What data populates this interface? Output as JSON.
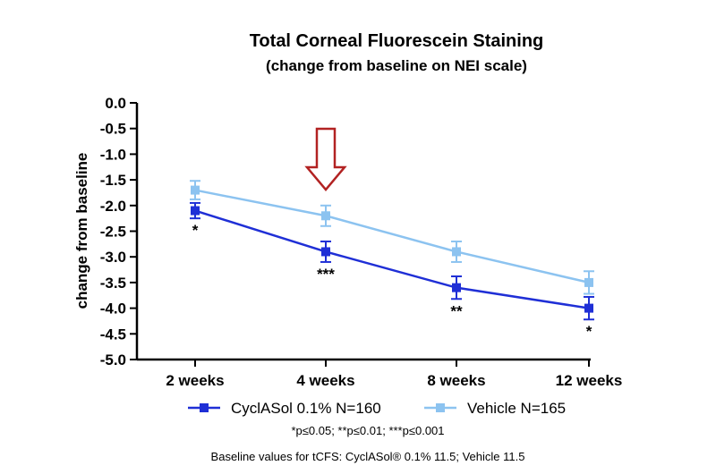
{
  "colors": {
    "series1": "#1f2fd6",
    "series2": "#8cc3f0",
    "arrow": "#b22222",
    "axis": "#000000"
  },
  "chart_data": {
    "type": "line",
    "title": "Total Corneal Fluorescein Staining",
    "subtitle": "(change from baseline on NEI scale)",
    "xlabel": "",
    "ylabel": "change from baseline",
    "categories": [
      "2 weeks",
      "4 weeks",
      "8 weeks",
      "12 weeks"
    ],
    "ylim": [
      -5.0,
      0.0
    ],
    "yticks": [
      "0.0",
      "-0.5",
      "-1.0",
      "-1.5",
      "-2.0",
      "-2.5",
      "-3.0",
      "-3.5",
      "-4.0",
      "-4.5",
      "-5.0"
    ],
    "grid": false,
    "legend_position": "bottom",
    "series": [
      {
        "name": "CyclASol 0.1% N=160",
        "color": "#1f2fd6",
        "values": [
          -2.1,
          -2.9,
          -3.6,
          -4.0
        ],
        "error": [
          0.15,
          0.2,
          0.22,
          0.22
        ],
        "significance": [
          "*",
          "***",
          "**",
          "*"
        ]
      },
      {
        "name": "Vehicle N=165",
        "color": "#8cc3f0",
        "values": [
          -1.7,
          -2.2,
          -2.9,
          -3.5
        ],
        "error": [
          0.18,
          0.2,
          0.2,
          0.22
        ]
      }
    ],
    "annotation_arrow_category": "4 weeks",
    "footnote": "*p≤0.05; **p≤0.01; ***p≤0.001",
    "baseline_note": "Baseline values for tCFS: CyclASol® 0.1% 11.5; Vehicle 11.5"
  }
}
